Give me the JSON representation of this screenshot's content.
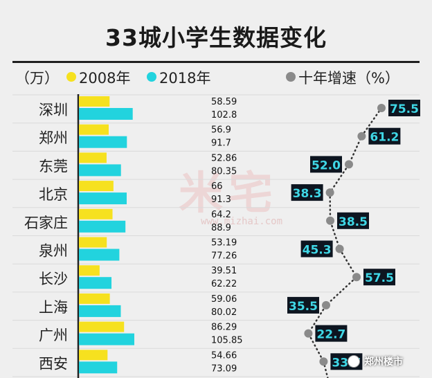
{
  "title": "33城小学生数据变化",
  "legend": {
    "unit": "（万）",
    "series_2008": "2008年",
    "series_2018": "2018年",
    "growth": "十年增速（%）"
  },
  "colors": {
    "bar_2008": "#f6e11f",
    "bar_2018": "#22d3de",
    "growth_dot": "#8a8a8a",
    "growth_label_bg": "#0d1520",
    "growth_label_text": "#3fd7e6"
  },
  "watermark": {
    "text": "米宅",
    "url": "www.mizhai.com"
  },
  "brand": "郑州楼市",
  "chart_data": {
    "type": "bar",
    "categories": [
      "深圳",
      "郑州",
      "东莞",
      "北京",
      "石家庄",
      "泉州",
      "长沙",
      "上海",
      "广州",
      "西安"
    ],
    "series": [
      {
        "name": "2008年",
        "values": [
          58.59,
          56.9,
          52.86,
          66,
          64.2,
          53.19,
          39.51,
          59.06,
          86.29,
          54.66
        ]
      },
      {
        "name": "2018年",
        "values": [
          102.8,
          91.7,
          80.35,
          91.3,
          88.9,
          77.26,
          62.22,
          80.02,
          105.85,
          73.09
        ]
      }
    ],
    "value_labels_2008": [
      "58.59",
      "56.9",
      "52.86",
      "66",
      "64.2",
      "53.19",
      "39.51",
      "59.06",
      "86.29",
      "54.66"
    ],
    "value_labels_2018": [
      "102.8",
      "91.7",
      "80.35",
      "91.3",
      "88.9",
      "77.26",
      "62.22",
      "80.02",
      "105.85",
      "73.09"
    ],
    "growth": {
      "name": "十年增速（%）",
      "values": [
        75.5,
        61.2,
        52.0,
        38.3,
        38.5,
        45.3,
        57.5,
        35.5,
        22.7,
        33.7
      ],
      "labels": [
        "75.5",
        "61.2",
        "52.0",
        "38.3",
        "38.5",
        "45.3",
        "57.5",
        "35.5",
        "22.7",
        "33.7"
      ],
      "label_side": [
        "right",
        "right",
        "left",
        "left",
        "right",
        "left",
        "right",
        "left",
        "right",
        "right"
      ]
    },
    "bar_xlim": [
      0,
      110
    ],
    "growth_xlim": [
      0,
      80
    ],
    "orientation": "horizontal",
    "legend_position": "top"
  }
}
